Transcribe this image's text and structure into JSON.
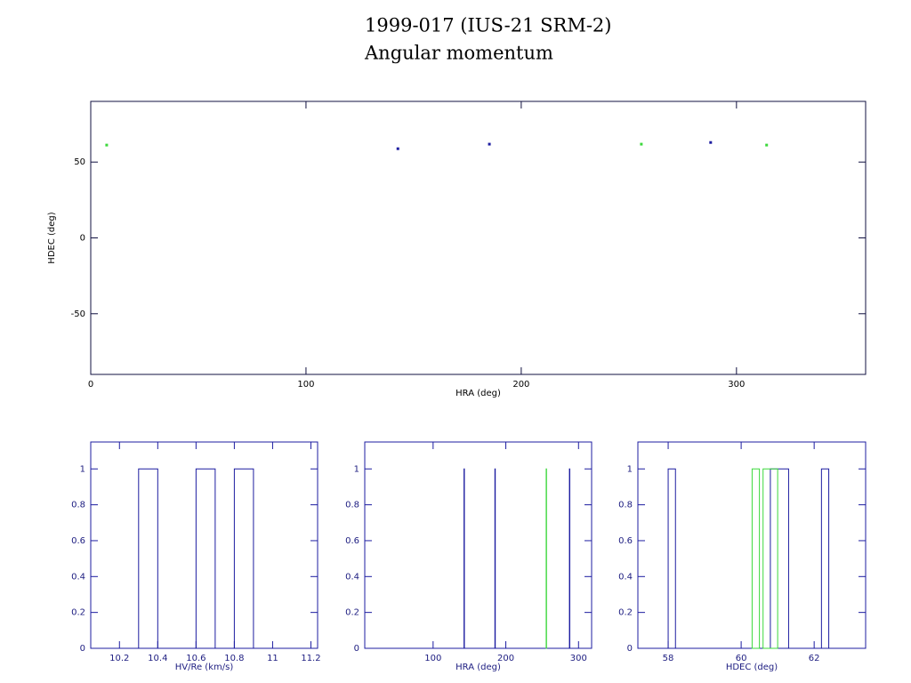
{
  "chart_data": [
    {
      "type": "scatter",
      "title": "1999-017 (IUS-21 SRM-2)",
      "subtitle": "Angular momentum",
      "xlabel": "HRA (deg)",
      "ylabel": "HDEC (deg)",
      "xlim": [
        0,
        360
      ],
      "ylim": [
        -90,
        90
      ],
      "xticks": [
        0,
        100,
        200,
        300
      ],
      "yticks": [
        -50,
        0,
        50
      ],
      "series": [
        {
          "color": "#1c1ca0",
          "x": [
            142.7,
            185.2,
            288
          ],
          "y": [
            58.8,
            61.8,
            62.9
          ]
        },
        {
          "color": "#3cd83c",
          "x": [
            7.4,
            255.8,
            314
          ],
          "y": [
            61.2,
            61.8,
            61.2
          ]
        }
      ]
    },
    {
      "type": "histogram",
      "xlabel": "HV/Re (km/s)",
      "xlim": [
        10.05,
        11.235
      ],
      "ylim": [
        0,
        1.15
      ],
      "xticks": [
        10.2,
        10.4,
        10.6,
        10.8,
        11,
        11.2
      ],
      "yticks": [
        0,
        0.2,
        0.4,
        0.6,
        0.8,
        1
      ],
      "series": [
        {
          "color": "#1c1ca0",
          "bins": [
            10.3,
            10.4,
            10.6,
            10.7,
            10.8,
            10.9
          ],
          "counts": [
            1,
            0,
            1,
            0,
            1
          ]
        }
      ]
    },
    {
      "type": "histogram",
      "xlabel": "HRA (deg)",
      "xlim": [
        6,
        318
      ],
      "ylim": [
        0,
        1.15
      ],
      "xticks": [
        100,
        200,
        300
      ],
      "yticks": [
        0,
        0.2,
        0.4,
        0.6,
        0.8,
        1
      ],
      "series": [
        {
          "color": "#1c1ca0",
          "bins": [
            142.5,
            143,
            185,
            185.5,
            287.5,
            288
          ],
          "counts": [
            1,
            0,
            1,
            0,
            1
          ]
        },
        {
          "color": "#3cd83c",
          "bins": [
            255.5,
            256
          ],
          "counts": [
            1
          ]
        }
      ]
    },
    {
      "type": "histogram",
      "xlabel": "HDEC (deg)",
      "xlim": [
        57.17,
        63.41
      ],
      "ylim": [
        0,
        1.15
      ],
      "xticks": [
        58,
        60,
        62
      ],
      "yticks": [
        0,
        0.2,
        0.4,
        0.6,
        0.8,
        1
      ],
      "series": [
        {
          "color": "#1c1ca0",
          "bins": [
            58,
            58.2,
            60.8,
            61.3,
            62.2,
            62.4
          ],
          "counts": [
            1,
            0,
            1,
            0,
            1
          ]
        },
        {
          "color": "#3cd83c",
          "bins": [
            60.3,
            60.5,
            60.6,
            61.0
          ],
          "counts": [
            1,
            0,
            1
          ]
        }
      ]
    }
  ]
}
